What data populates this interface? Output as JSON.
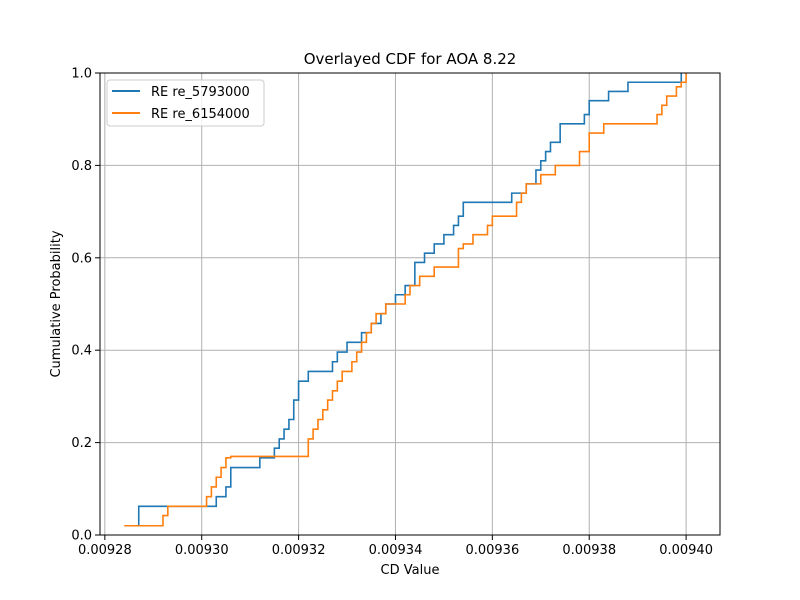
{
  "chart_data": {
    "type": "line",
    "step": true,
    "title": "Overlayed CDF for AOA 8.22",
    "xlabel": "CD Value",
    "ylabel": "Cumulative Probability",
    "xlim": [
      0.009279,
      0.009407
    ],
    "ylim": [
      0,
      1
    ],
    "xticks": [
      0.00928,
      0.0093,
      0.00932,
      0.00934,
      0.00936,
      0.00938,
      0.0094
    ],
    "xtick_labels": [
      "0.00928",
      "0.00930",
      "0.00932",
      "0.00934",
      "0.00936",
      "0.00938",
      "0.00940"
    ],
    "yticks": [
      0,
      0.2,
      0.4,
      0.6,
      0.8,
      1.0
    ],
    "ytick_labels": [
      "0.0",
      "0.2",
      "0.4",
      "0.6",
      "0.8",
      "1.0"
    ],
    "grid": true,
    "legend_position": "top-left",
    "series": [
      {
        "name": "RE re_5793000",
        "color": "#1f77b4",
        "x": [
          0.009287,
          0.009287,
          0.009303,
          0.009305,
          0.009306,
          0.009312,
          0.009315,
          0.009316,
          0.009317,
          0.009318,
          0.009319,
          0.00932,
          0.009322,
          0.009327,
          0.009328,
          0.00933,
          0.009333,
          0.009335,
          0.009337,
          0.009338,
          0.00934,
          0.009342,
          0.009344,
          0.009344,
          0.009346,
          0.009348,
          0.00935,
          0.009352,
          0.009353,
          0.009354,
          0.009364,
          0.009367,
          0.009369,
          0.00937,
          0.009371,
          0.009372,
          0.009374,
          0.009379,
          0.00938,
          0.009384,
          0.009388,
          0.009399
        ],
        "y": [
          0.02,
          0.062,
          0.083,
          0.104,
          0.146,
          0.167,
          0.188,
          0.208,
          0.229,
          0.25,
          0.292,
          0.333,
          0.354,
          0.375,
          0.396,
          0.417,
          0.438,
          0.458,
          0.479,
          0.5,
          0.52,
          0.54,
          0.56,
          0.59,
          0.61,
          0.63,
          0.65,
          0.67,
          0.69,
          0.72,
          0.74,
          0.76,
          0.79,
          0.81,
          0.83,
          0.85,
          0.89,
          0.91,
          0.94,
          0.96,
          0.98,
          1.0
        ]
      },
      {
        "name": "RE re_6154000",
        "color": "#ff7f0e",
        "x": [
          0.009284,
          0.009292,
          0.009293,
          0.009301,
          0.009302,
          0.009303,
          0.009304,
          0.009305,
          0.009306,
          0.009308,
          0.009322,
          0.009322,
          0.009323,
          0.009324,
          0.009325,
          0.009326,
          0.009327,
          0.009328,
          0.009329,
          0.009331,
          0.009332,
          0.009333,
          0.009334,
          0.009335,
          0.009336,
          0.009338,
          0.009342,
          0.009343,
          0.009345,
          0.009348,
          0.009353,
          0.009353,
          0.009354,
          0.009356,
          0.009359,
          0.00936,
          0.009365,
          0.009366,
          0.009367,
          0.00937,
          0.009373,
          0.009378,
          0.00938,
          0.009383,
          0.009394,
          0.009395,
          0.009396,
          0.009398,
          0.009399,
          0.0094
        ],
        "y": [
          0.02,
          0.042,
          0.062,
          0.083,
          0.104,
          0.125,
          0.146,
          0.167,
          0.17,
          0.17,
          0.187,
          0.208,
          0.229,
          0.25,
          0.271,
          0.292,
          0.312,
          0.333,
          0.354,
          0.375,
          0.396,
          0.417,
          0.438,
          0.458,
          0.479,
          0.5,
          0.52,
          0.54,
          0.56,
          0.58,
          0.61,
          0.62,
          0.63,
          0.65,
          0.67,
          0.69,
          0.72,
          0.74,
          0.76,
          0.78,
          0.8,
          0.83,
          0.87,
          0.89,
          0.91,
          0.93,
          0.95,
          0.97,
          0.98,
          1.0
        ]
      }
    ]
  }
}
